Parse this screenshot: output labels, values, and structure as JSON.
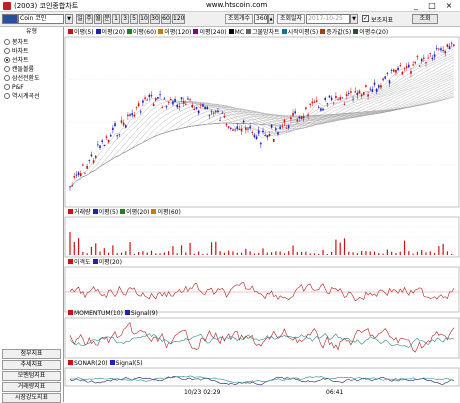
{
  "window": {
    "title": "(2003) 코인종합차트",
    "url": "www.htscoin.com",
    "minimize": "_",
    "maximize": "□",
    "close": "×"
  },
  "toolbar": {
    "coin_select": "",
    "coin_name": "Coin 코인",
    "period_buttons": [
      "일",
      "주",
      "월",
      "분",
      "1",
      "3",
      "5",
      "10",
      "30",
      "60",
      "120"
    ],
    "count_label": "조회개수",
    "count_value": "360",
    "date_label": "조회일자",
    "date_value": "2017-10-25",
    "aux_label": "보조지표",
    "aux_checked": "✓",
    "query_button": "조회"
  },
  "sidebar": {
    "heading": "유형",
    "chart_types": [
      {
        "label": "봉차트",
        "selected": false
      },
      {
        "label": "바차트",
        "selected": false
      },
      {
        "label": "선차트",
        "selected": true
      },
      {
        "label": "캔들볼륨",
        "selected": false
      },
      {
        "label": "삼선전환도",
        "selected": false
      },
      {
        "label": "P&F",
        "selected": false
      },
      {
        "label": "역시계곡선",
        "selected": false
      }
    ],
    "buttons": [
      "점부지표",
      "추세지표",
      "모멘텀지표",
      "거래량지표",
      "시장강도지표"
    ]
  },
  "panels": {
    "price_legend": [
      "이평(5)",
      "이평(20)",
      "이평(60)",
      "이평(120)",
      "이평(240)",
      "MC",
      "그물망차트",
      "시작이평(5)",
      "증가값(5)",
      "이평수(20)"
    ],
    "volume_legend": [
      "거래량",
      "이평(5)",
      "이평(20)",
      "이평(60)"
    ],
    "disparity_legend": [
      "이격도",
      "이평(20)"
    ],
    "momentum_legend": [
      "MOMENTUM(10)",
      "Signal(9)"
    ],
    "sonar_legend": [
      "SONAR(20)",
      "Signal(5)"
    ]
  },
  "xaxis": {
    "labels": [
      "10/23 02:29",
      "06:41"
    ]
  },
  "colors": {
    "up": "#d01010",
    "down": "#2020c0",
    "ma_fan": "#9a9a9a",
    "osc": "#b02020",
    "signal": "#2a8a8a",
    "sonar": "#202060"
  }
}
